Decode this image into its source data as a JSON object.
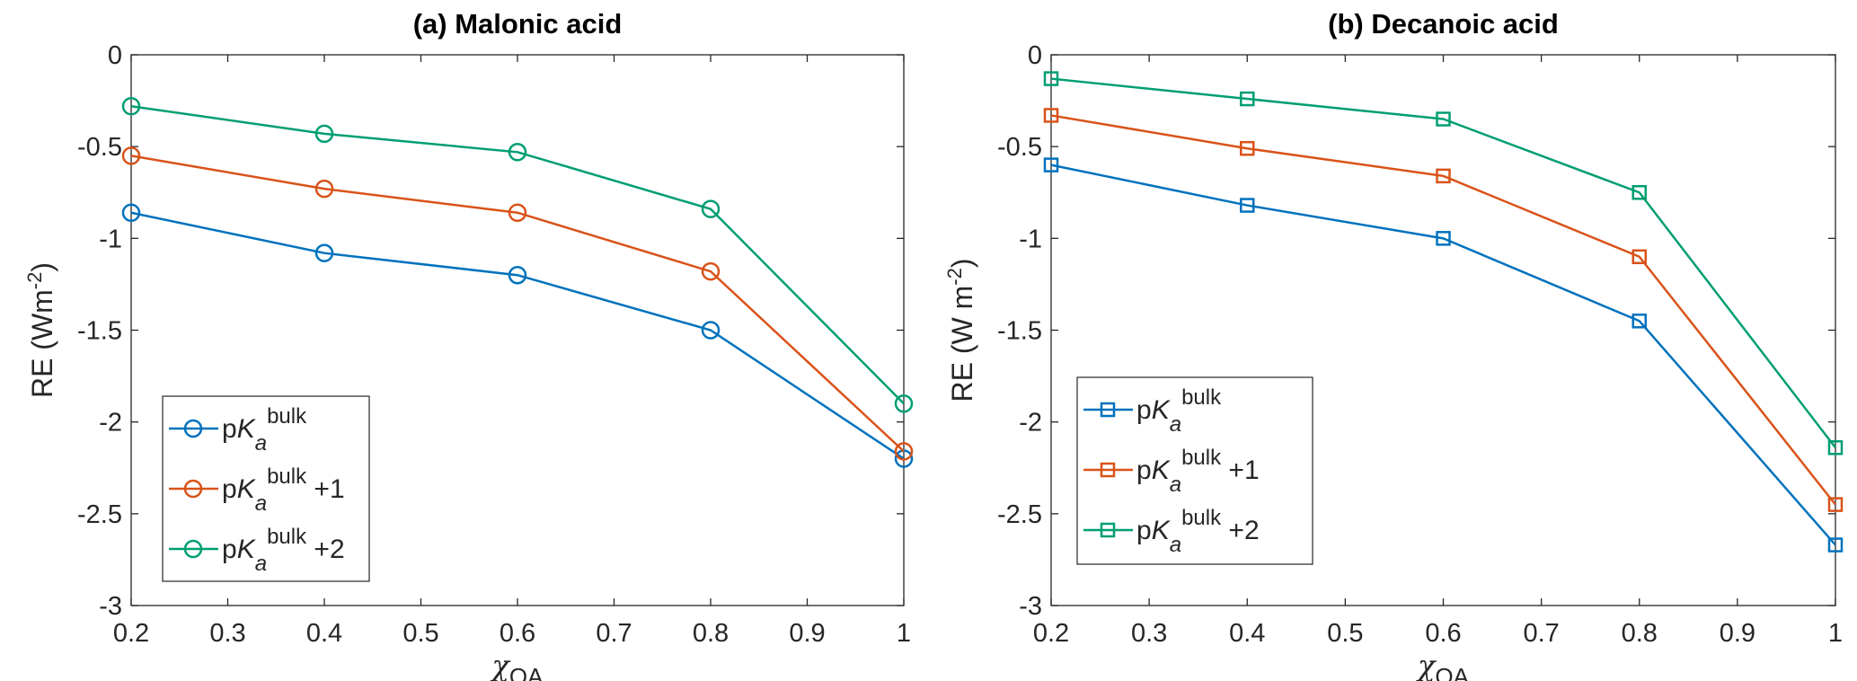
{
  "chart_data": [
    {
      "type": "line",
      "title": "(a) Malonic acid",
      "xlabel": "χ",
      "xlabel_sub": "OA",
      "ylabel": "RE (Wm",
      "ylabel_sup": "-2",
      "ylabel_end": ")",
      "x": [
        0.2,
        0.4,
        0.6,
        0.8,
        1.0
      ],
      "xlim": [
        0.2,
        1.0
      ],
      "ylim": [
        -3,
        0
      ],
      "xticks": [
        "0.2",
        "0.3",
        "0.4",
        "0.5",
        "0.6",
        "0.7",
        "0.8",
        "0.9",
        "1"
      ],
      "yticks": [
        "0",
        "-0.5",
        "-1",
        "-1.5",
        "-2",
        "-2.5",
        "-3"
      ],
      "marker": "circle",
      "legend_position": "bottom-left",
      "series": [
        {
          "name": "pKa bulk",
          "suffix": "",
          "color": "#0072BD",
          "values": [
            -0.86,
            -1.08,
            -1.2,
            -1.5,
            -2.2
          ]
        },
        {
          "name": "pKa bulk +1",
          "suffix": "+1",
          "color": "#D95319",
          "values": [
            -0.55,
            -0.73,
            -0.86,
            -1.18,
            -2.16
          ]
        },
        {
          "name": "pKa bulk +2",
          "suffix": "+2",
          "color": "#009E73",
          "values": [
            -0.28,
            -0.43,
            -0.53,
            -0.84,
            -1.9
          ]
        }
      ]
    },
    {
      "type": "line",
      "title": "(b) Decanoic acid",
      "xlabel": "χ",
      "xlabel_sub": "OA",
      "ylabel": "RE (W m",
      "ylabel_sup": "-2",
      "ylabel_end": ")",
      "x": [
        0.2,
        0.4,
        0.6,
        0.8,
        1.0
      ],
      "xlim": [
        0.2,
        1.0
      ],
      "ylim": [
        -3,
        0
      ],
      "xticks": [
        "0.2",
        "0.3",
        "0.4",
        "0.5",
        "0.6",
        "0.7",
        "0.8",
        "0.9",
        "1"
      ],
      "yticks": [
        "0",
        "-0.5",
        "-1",
        "-1.5",
        "-2",
        "-2.5",
        "-3"
      ],
      "marker": "square",
      "legend_position": "bottom-left",
      "series": [
        {
          "name": "pKa bulk",
          "suffix": "",
          "color": "#0072BD",
          "values": [
            -0.6,
            -0.82,
            -1.0,
            -1.45,
            -2.67
          ]
        },
        {
          "name": "pKa bulk +1",
          "suffix": "+1",
          "color": "#D95319",
          "values": [
            -0.33,
            -0.51,
            -0.66,
            -1.1,
            -2.45
          ]
        },
        {
          "name": "pKa bulk +2",
          "suffix": "+2",
          "color": "#009E73",
          "values": [
            -0.13,
            -0.24,
            -0.35,
            -0.75,
            -2.14
          ]
        }
      ]
    }
  ]
}
